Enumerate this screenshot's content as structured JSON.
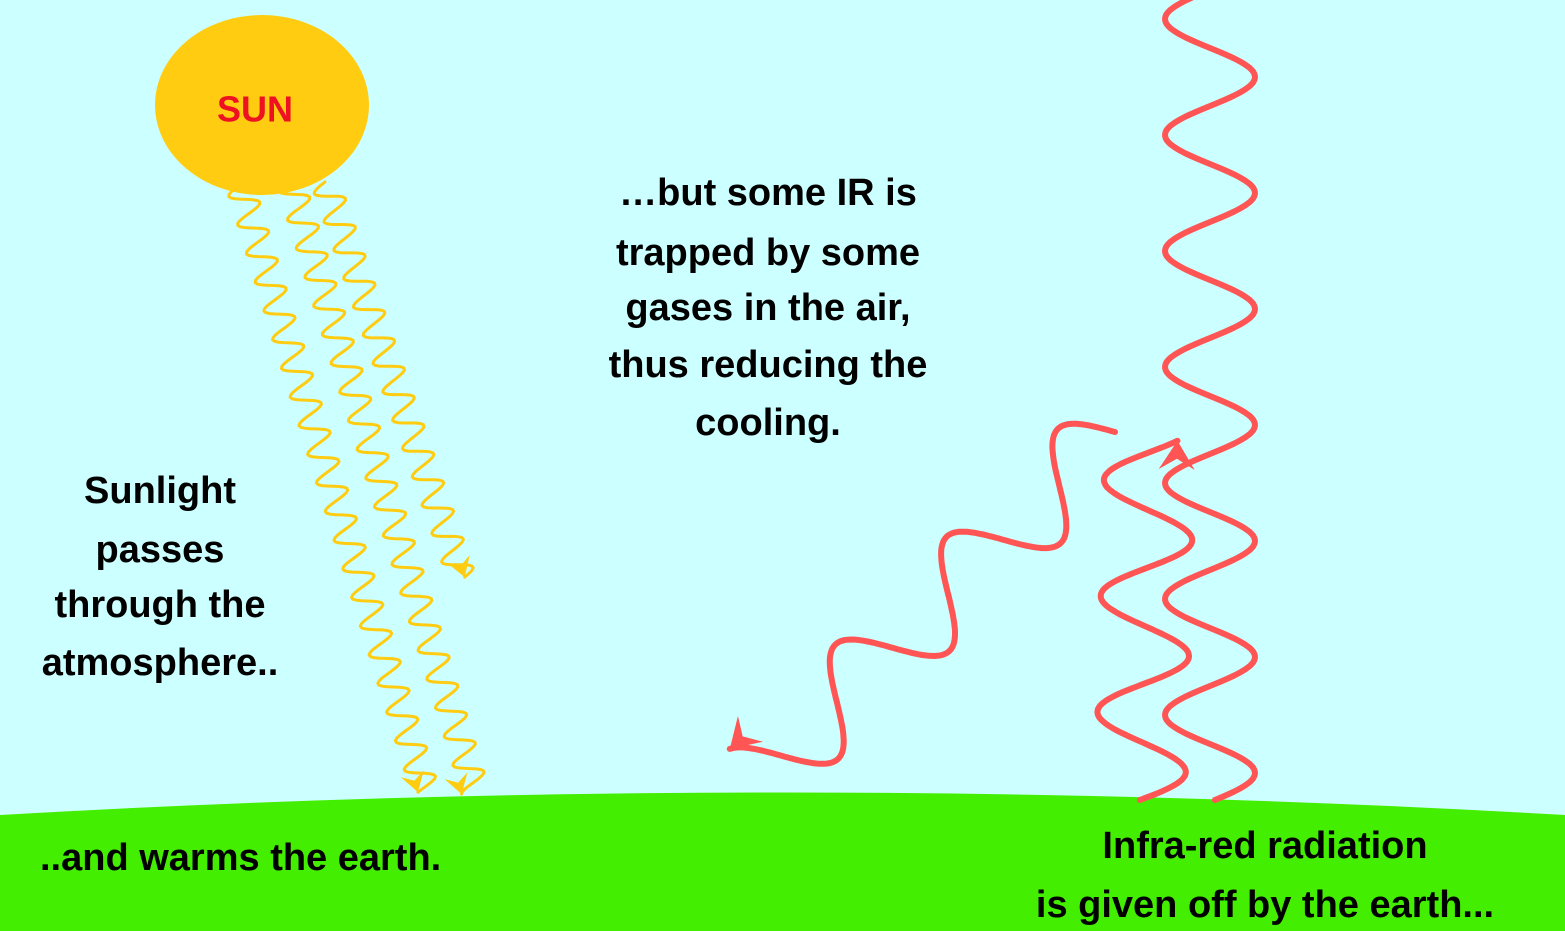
{
  "sun": {
    "label": "SUN"
  },
  "sunlight_text": [
    "Sunlight",
    "passes",
    "through the",
    "atmosphere.."
  ],
  "warms_text": "..and warms the earth.",
  "trapped_text": [
    "…but some IR is",
    "trapped by some",
    "gases in the air,",
    "thus reducing the",
    "cooling."
  ],
  "infrared_text": [
    "Infra-red radiation",
    "is given off by the earth..."
  ]
}
